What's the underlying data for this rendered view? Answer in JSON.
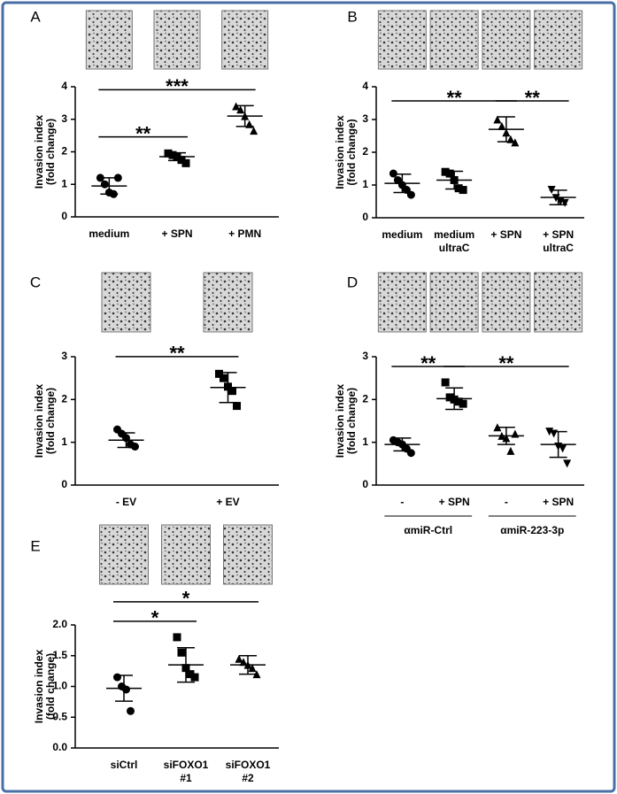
{
  "chart_data": [
    {
      "type": "dot",
      "panel": "A",
      "ylabel": [
        "Invasion index",
        "(fold change)"
      ],
      "categories": [
        [
          "medium"
        ],
        [
          "+ SPN"
        ],
        [
          "+ PMN"
        ]
      ],
      "markers": [
        "circle",
        "square",
        "triangle-up"
      ],
      "color": "#000000",
      "points": [
        [
          1.2,
          1.0,
          0.75,
          0.7,
          1.2
        ],
        [
          1.95,
          1.9,
          1.85,
          1.75,
          1.65
        ],
        [
          3.4,
          3.3,
          3.1,
          2.85,
          2.65
        ]
      ],
      "means": [
        0.95,
        1.85,
        3.1
      ],
      "sd": [
        0.25,
        0.12,
        0.32
      ],
      "ylim": [
        0,
        4
      ],
      "yticks": [
        0,
        1,
        2,
        3,
        4
      ],
      "annotations": [
        {
          "between": [
            0,
            1
          ],
          "label": "**"
        },
        {
          "between": [
            0,
            2
          ],
          "label": "***"
        }
      ]
    },
    {
      "type": "dot",
      "panel": "B",
      "ylabel": [
        "Invasion index",
        "(fold change)"
      ],
      "categories": [
        [
          "medium"
        ],
        [
          "medium",
          "ultraC"
        ],
        [
          "+ SPN"
        ],
        [
          "+ SPN",
          "ultraC"
        ]
      ],
      "markers": [
        "circle",
        "square",
        "triangle-up",
        "triangle-down"
      ],
      "color": "#000000",
      "points": [
        [
          1.35,
          1.15,
          1.0,
          0.85,
          0.7
        ],
        [
          1.4,
          1.35,
          1.15,
          0.9,
          0.85
        ],
        [
          3.0,
          2.8,
          2.6,
          2.4,
          2.3
        ],
        [
          0.85,
          0.6,
          0.5,
          0.45
        ]
      ],
      "means": [
        1.05,
        1.15,
        2.7,
        0.62
      ],
      "sd": [
        0.28,
        0.27,
        0.38,
        0.22
      ],
      "ylim": [
        0,
        4
      ],
      "yticks": [
        0,
        1,
        2,
        3,
        4
      ],
      "annotations": [
        {
          "between": [
            0,
            2
          ],
          "label": "**"
        },
        {
          "between": [
            2,
            3
          ],
          "label": "**"
        }
      ]
    },
    {
      "type": "dot",
      "panel": "C",
      "ylabel": [
        "Invasion index",
        "(fold change)"
      ],
      "categories": [
        [
          "- EV"
        ],
        [
          "+ EV"
        ]
      ],
      "markers": [
        "circle",
        "square"
      ],
      "color": "#000000",
      "points": [
        [
          1.3,
          1.2,
          1.1,
          0.95,
          0.9
        ],
        [
          2.6,
          2.5,
          2.3,
          2.2,
          1.85
        ]
      ],
      "means": [
        1.05,
        2.28
      ],
      "sd": [
        0.17,
        0.35
      ],
      "ylim": [
        0,
        3
      ],
      "yticks": [
        0,
        1,
        2,
        3
      ],
      "annotations": [
        {
          "between": [
            0,
            1
          ],
          "label": "**"
        }
      ]
    },
    {
      "type": "dot",
      "panel": "D",
      "ylabel": [
        "Invasion index",
        "(fold change)"
      ],
      "categories": [
        [
          "-"
        ],
        [
          "+ SPN"
        ],
        [
          "-"
        ],
        [
          "+ SPN"
        ]
      ],
      "markers": [
        "circle",
        "square",
        "triangle-up",
        "triangle-down"
      ],
      "color": "#000000",
      "points": [
        [
          1.05,
          1.0,
          0.95,
          0.85,
          0.75
        ],
        [
          2.4,
          2.05,
          2.0,
          1.95,
          1.9
        ],
        [
          1.35,
          1.15,
          1.1,
          0.8,
          1.2
        ],
        [
          1.25,
          1.2,
          0.9,
          0.85,
          0.5
        ]
      ],
      "means": [
        0.95,
        2.02,
        1.15,
        0.95
      ],
      "sd": [
        0.15,
        0.25,
        0.2,
        0.3
      ],
      "ylim": [
        0,
        3
      ],
      "yticks": [
        0,
        1,
        2,
        3
      ],
      "annotations": [
        {
          "between": [
            0,
            1
          ],
          "label": "**"
        },
        {
          "between": [
            1,
            3
          ],
          "label": "**"
        }
      ],
      "groups": [
        "αmiR-Ctrl",
        "αmiR-223-3p"
      ]
    },
    {
      "type": "dot",
      "panel": "E",
      "ylabel": [
        "Invasion index",
        "(fold change)"
      ],
      "categories": [
        [
          "siCtrl"
        ],
        [
          "siFOXO1",
          "#1"
        ],
        [
          "siFOXO1",
          "#2"
        ]
      ],
      "markers": [
        "circle",
        "square",
        "triangle-up"
      ],
      "color": "#000000",
      "points": [
        [
          1.15,
          1.0,
          0.95,
          0.6
        ],
        [
          1.8,
          1.55,
          1.3,
          1.2,
          1.15
        ],
        [
          1.45,
          1.4,
          1.35,
          1.3,
          1.2
        ]
      ],
      "means": [
        0.97,
        1.35,
        1.35
      ],
      "sd": [
        0.21,
        0.28,
        0.15
      ],
      "ylim": [
        0,
        2
      ],
      "yticks": [
        {
          "value": 0,
          "label": "0.0"
        },
        {
          "value": 0.5,
          "label": "0.5"
        },
        {
          "value": 1,
          "label": "1.0"
        },
        {
          "value": 1.5,
          "label": "1.5"
        },
        {
          "value": 2,
          "label": "2.0"
        }
      ],
      "annotations": [
        {
          "between": [
            0,
            1
          ],
          "label": "*"
        },
        {
          "between": [
            0,
            2
          ],
          "label": "*"
        }
      ]
    }
  ]
}
